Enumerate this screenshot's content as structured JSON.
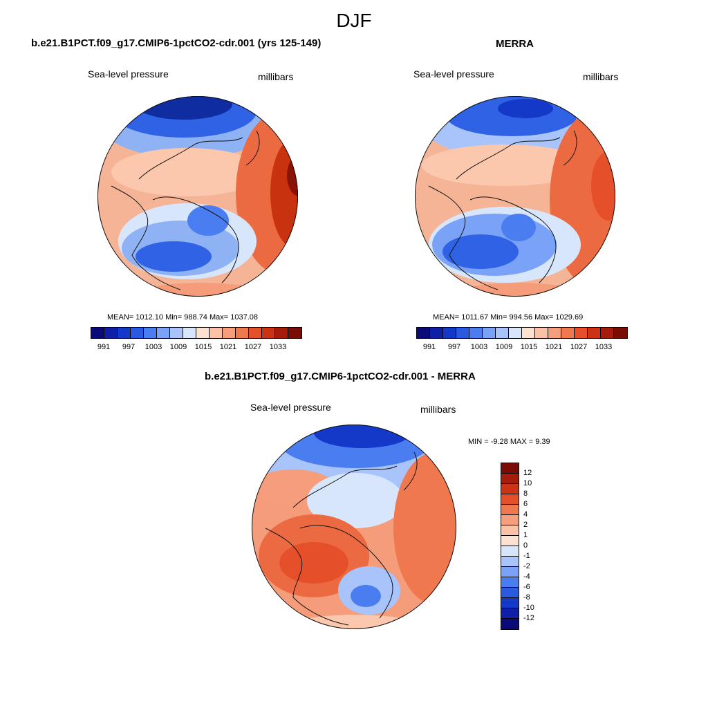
{
  "figure": {
    "title": "DJF"
  },
  "panels": {
    "model": {
      "title": "b.e21.B1PCT.f09_g17.CMIP6-1pctCO2-cdr.001 (yrs 125-149)",
      "left_label": "Sea-level pressure",
      "right_label": "millibars",
      "stats": "MEAN= 1012.10  Min= 988.74  Max= 1037.08",
      "mean": 1012.1,
      "min": 988.74,
      "max": 1037.08
    },
    "obs": {
      "title": "MERRA",
      "left_label": "Sea-level pressure",
      "right_label": "millibars",
      "stats": "MEAN= 1011.67  Min= 994.56  Max= 1029.69",
      "mean": 1011.67,
      "min": 994.56,
      "max": 1029.69
    },
    "diff": {
      "title": "b.e21.B1PCT.f09_g17.CMIP6-1pctCO2-cdr.001 - MERRA",
      "left_label": "Sea-level pressure",
      "right_label": "millibars",
      "stats": "MIN =  -9.28 MAX =   9.39",
      "min": -9.28,
      "max": 9.39
    }
  },
  "colorbars": {
    "abs": {
      "tick_labels": [
        "991",
        "997",
        "1003",
        "1009",
        "1015",
        "1021",
        "1027",
        "1033"
      ],
      "colors": [
        "#0a0a78",
        "#0f1fa8",
        "#1438c8",
        "#2a5ae0",
        "#4a7ef0",
        "#7aa2f6",
        "#a8c4fa",
        "#d8e6fc",
        "#fde2d2",
        "#fbc2a6",
        "#f69e7c",
        "#f0784f",
        "#e5502a",
        "#cc3214",
        "#a51c0c",
        "#7a0c06"
      ]
    },
    "diff": {
      "tick_labels": [
        "12",
        "10",
        "8",
        "6",
        "4",
        "2",
        "1",
        "0",
        "-1",
        "-2",
        "-4",
        "-6",
        "-8",
        "-10",
        "-12"
      ],
      "colors": [
        "#7a0c06",
        "#a51c0c",
        "#cc3214",
        "#e5502a",
        "#f0784f",
        "#f69e7c",
        "#fbc2a6",
        "#fde2d2",
        "#d8e6fc",
        "#a8c4fa",
        "#7aa2f6",
        "#4a7ef0",
        "#2a5ae0",
        "#1438c8",
        "#0f1fa8",
        "#0a0a78"
      ]
    }
  },
  "map_colors": {
    "deep_blue": "#0f2ca0",
    "blue": "#2f62e4",
    "light_blue": "#8fb2f4",
    "pale_blue": "#d8e6fc",
    "pale_red": "#fbc8ae",
    "salmon": "#f59c7a",
    "red": "#ec6a42",
    "dark_red": "#c8320f",
    "darkest_red": "#8a1206",
    "coast": "#111111"
  }
}
